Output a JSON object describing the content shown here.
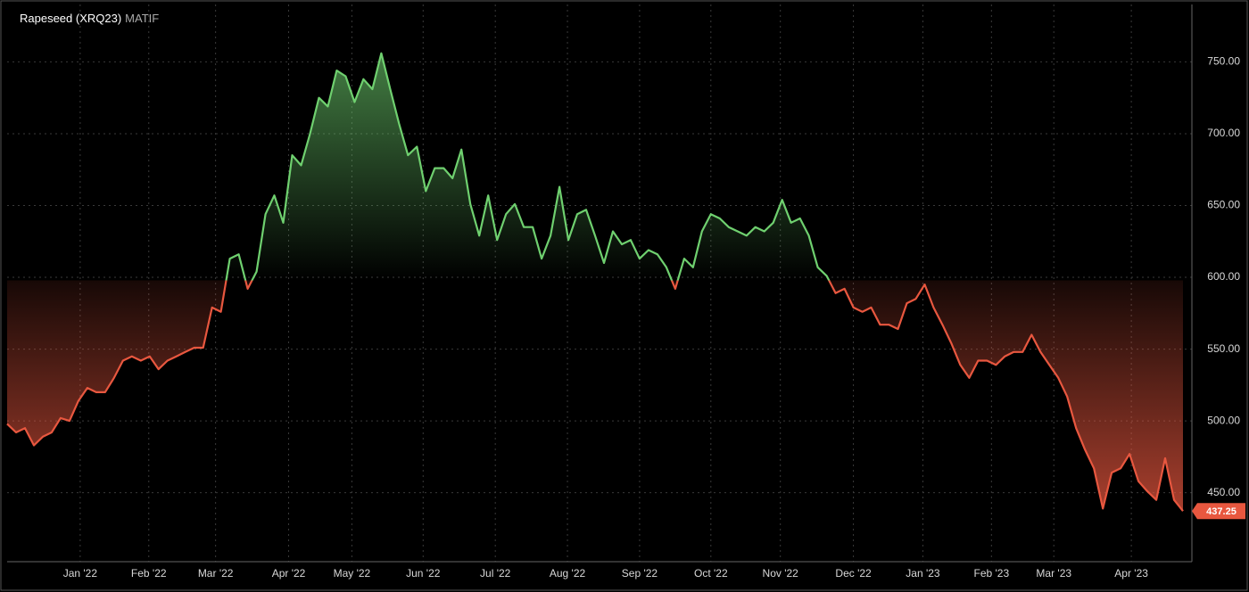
{
  "chart_data": {
    "type": "baseline-area",
    "title": "Rapeseed (XRQ23)",
    "subtitle": "MATIF",
    "baseline": 598,
    "up_color": "#6fd06f",
    "down_color": "#e8573f",
    "series": [
      {
        "name": "Rapeseed (XRQ23)",
        "values": [
          498,
          492,
          495,
          483,
          489,
          492,
          502,
          500,
          514,
          523,
          520,
          520,
          530,
          542,
          545,
          542,
          545,
          536,
          542,
          545,
          548,
          551,
          551,
          579,
          576,
          613,
          616,
          592,
          604,
          644,
          657,
          638,
          685,
          678,
          700,
          725,
          719,
          744,
          740,
          722,
          738,
          731,
          756,
          731,
          707,
          685,
          691,
          660,
          676,
          676,
          669,
          689,
          651,
          629,
          657,
          626,
          644,
          651,
          635,
          635,
          613,
          629,
          663,
          626,
          644,
          647,
          629,
          610,
          632,
          623,
          626,
          613,
          619,
          616,
          607,
          592,
          613,
          607,
          632,
          644,
          641,
          635,
          632,
          629,
          635,
          632,
          638,
          654,
          638,
          641,
          629,
          607,
          601,
          589,
          592,
          579,
          576,
          579,
          567,
          567,
          564,
          582,
          585,
          595,
          579,
          567,
          554,
          539,
          530,
          542,
          542,
          539,
          545,
          548,
          548,
          560,
          548,
          539,
          530,
          517,
          495,
          480,
          467,
          439,
          464,
          467,
          477,
          458,
          451,
          445,
          474,
          445,
          437.25
        ]
      }
    ],
    "xlim": [
      0,
      133
    ],
    "xticks": [
      {
        "value": 8.2,
        "label": "Jan '22"
      },
      {
        "value": 15.9,
        "label": "Feb '22"
      },
      {
        "value": 23.4,
        "label": "Mar '22"
      },
      {
        "value": 31.6,
        "label": "Apr '22"
      },
      {
        "value": 38.7,
        "label": "May '22"
      },
      {
        "value": 46.7,
        "label": "Jun '22"
      },
      {
        "value": 54.8,
        "label": "Jul '22"
      },
      {
        "value": 62.9,
        "label": "Aug '22"
      },
      {
        "value": 71,
        "label": "Sep '22"
      },
      {
        "value": 79,
        "label": "Oct '22"
      },
      {
        "value": 86.8,
        "label": "Nov '22"
      },
      {
        "value": 95,
        "label": "Dec '22"
      },
      {
        "value": 102.8,
        "label": "Jan '23"
      },
      {
        "value": 110.5,
        "label": "Feb '23"
      },
      {
        "value": 117.5,
        "label": "Mar '23"
      },
      {
        "value": 126.2,
        "label": "Apr '23"
      }
    ],
    "ylim": [
      402,
      790
    ],
    "yticks": [
      {
        "value": 450,
        "label": "450.00"
      },
      {
        "value": 500,
        "label": "500.00"
      },
      {
        "value": 550,
        "label": "550.00"
      },
      {
        "value": 600,
        "label": "600.00"
      },
      {
        "value": 650,
        "label": "650.00"
      },
      {
        "value": 700,
        "label": "700.00"
      },
      {
        "value": 750,
        "label": "750.00"
      }
    ],
    "grid": true
  }
}
